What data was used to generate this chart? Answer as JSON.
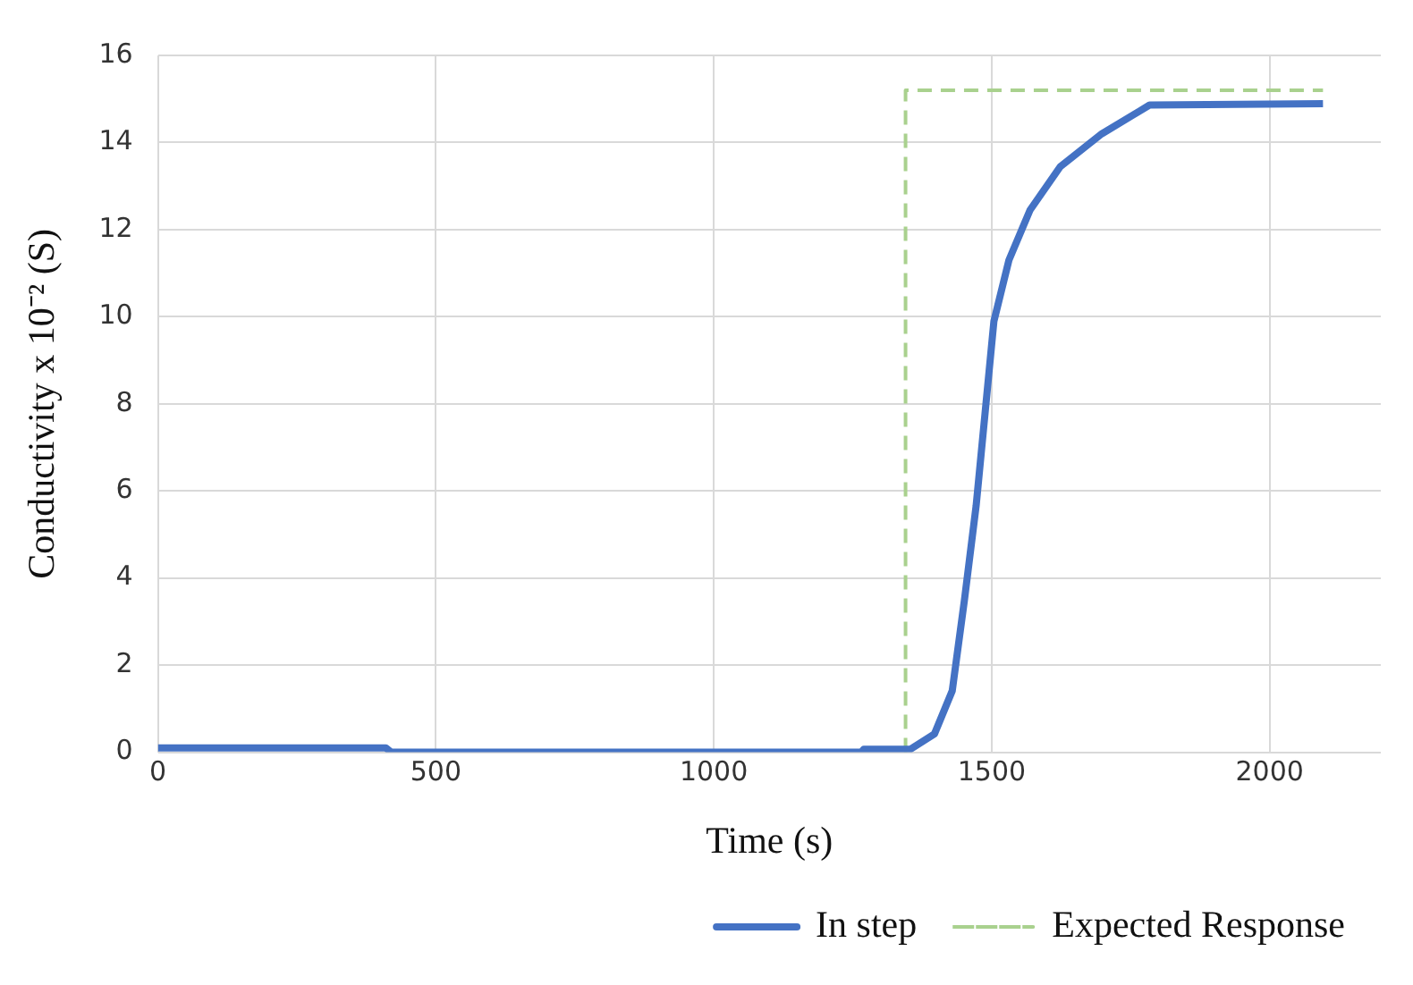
{
  "chart_data": {
    "type": "line",
    "xlabel": "Time (s)",
    "ylabel": "Conductivity x 10⁻² (S)",
    "xlim": [
      0,
      2200
    ],
    "xticks": [
      0,
      500,
      1000,
      1500,
      2000
    ],
    "ylim": [
      0,
      16
    ],
    "yticks": [
      0,
      2,
      4,
      6,
      8,
      10,
      12,
      14,
      16
    ],
    "grid": true,
    "legend": "bottom",
    "series": [
      {
        "name": "In step",
        "color": "#4472c4",
        "x": [
          0,
          410,
          420,
          1265,
          1270,
          1354,
          1397,
          1429,
          1451,
          1472,
          1488,
          1504,
          1531,
          1569,
          1623,
          1698,
          1784,
          2096
        ],
        "values": [
          0.1,
          0.1,
          0.0,
          0.0,
          0.07,
          0.07,
          0.42,
          1.41,
          3.5,
          5.66,
          7.78,
          9.9,
          11.3,
          12.45,
          13.44,
          14.2,
          14.86,
          14.89
        ]
      },
      {
        "name": "Expected Response",
        "color": "#a9d18e",
        "line_style": "dashed",
        "x": [
          1345,
          1345,
          2096
        ],
        "values": [
          0,
          15.2,
          15.2
        ]
      }
    ]
  }
}
